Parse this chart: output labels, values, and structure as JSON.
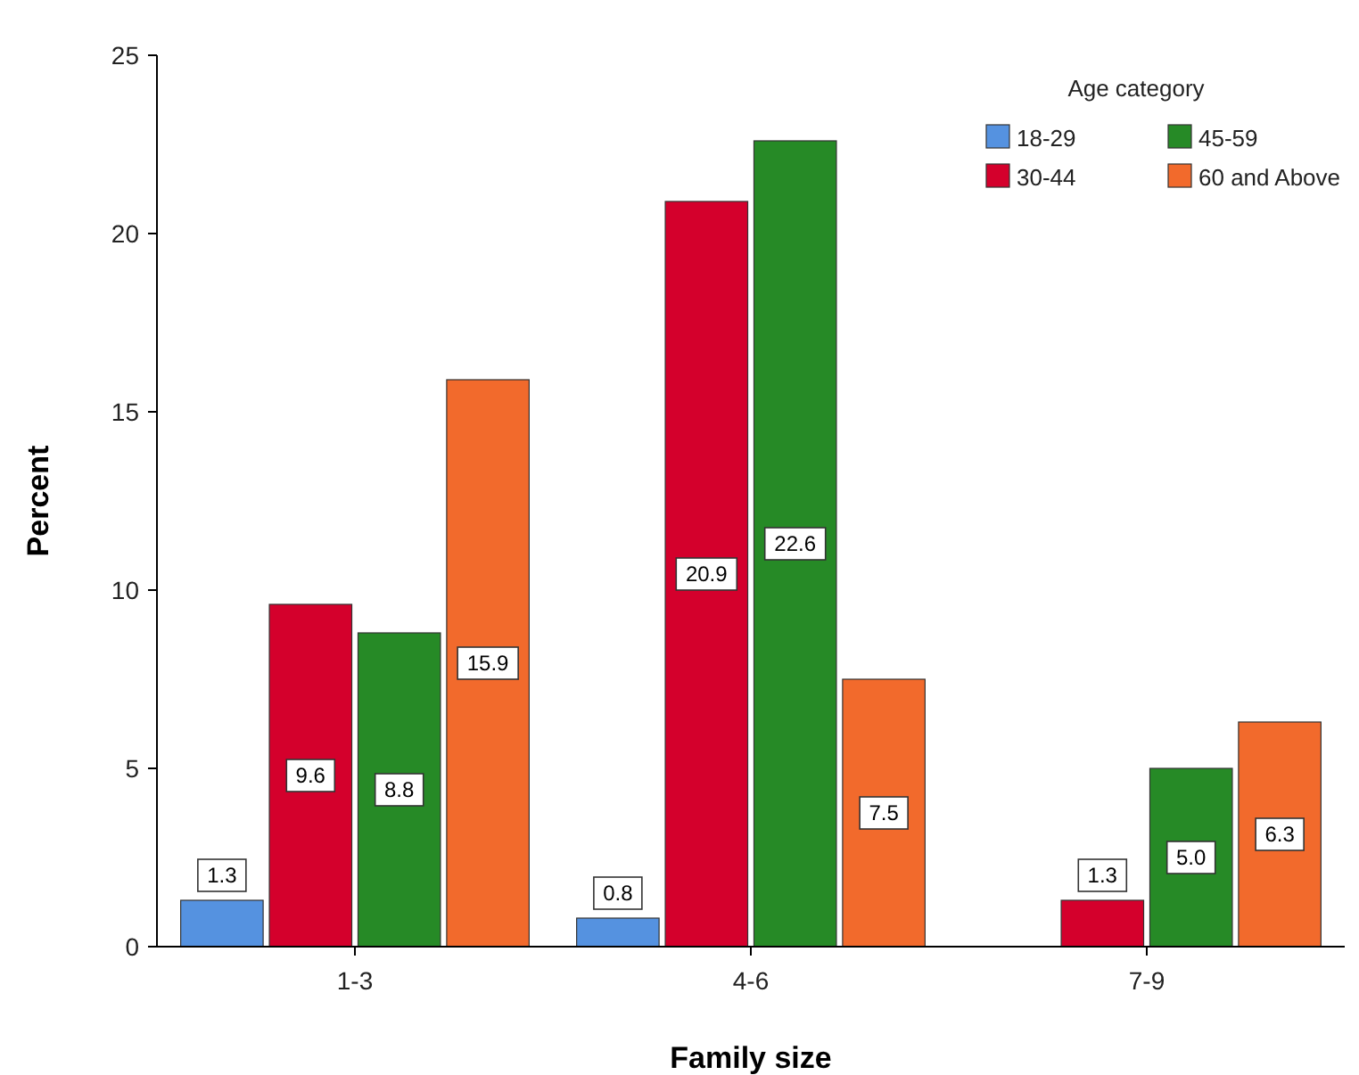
{
  "chart_data": {
    "type": "bar",
    "xlabel": "Family size",
    "ylabel": "Percent",
    "legend_title": "Age category",
    "legend": "top right",
    "grid": false,
    "categories": [
      "1-3",
      "4-6",
      "7-9"
    ],
    "ylim": [
      0,
      25
    ],
    "yticks": [
      0,
      5,
      10,
      15,
      20,
      25
    ],
    "series": [
      {
        "name": "18-29",
        "color": "#5592e0",
        "values": [
          1.3,
          0.8,
          null
        ],
        "value_labels": [
          "1.3",
          "0.8",
          null
        ]
      },
      {
        "name": "30-44",
        "color": "#d4002c",
        "values": [
          9.6,
          20.9,
          1.3
        ],
        "value_labels": [
          "9.6",
          "20.9",
          "1.3"
        ]
      },
      {
        "name": "45-59",
        "color": "#268a26",
        "values": [
          8.8,
          22.6,
          5.0
        ],
        "value_labels": [
          "8.8",
          "22.6",
          "5.0"
        ]
      },
      {
        "name": "60 and Above",
        "color": "#f26a2c",
        "values": [
          15.9,
          7.5,
          6.3
        ],
        "value_labels": [
          "15.9",
          "7.5",
          "6.3"
        ]
      }
    ]
  }
}
